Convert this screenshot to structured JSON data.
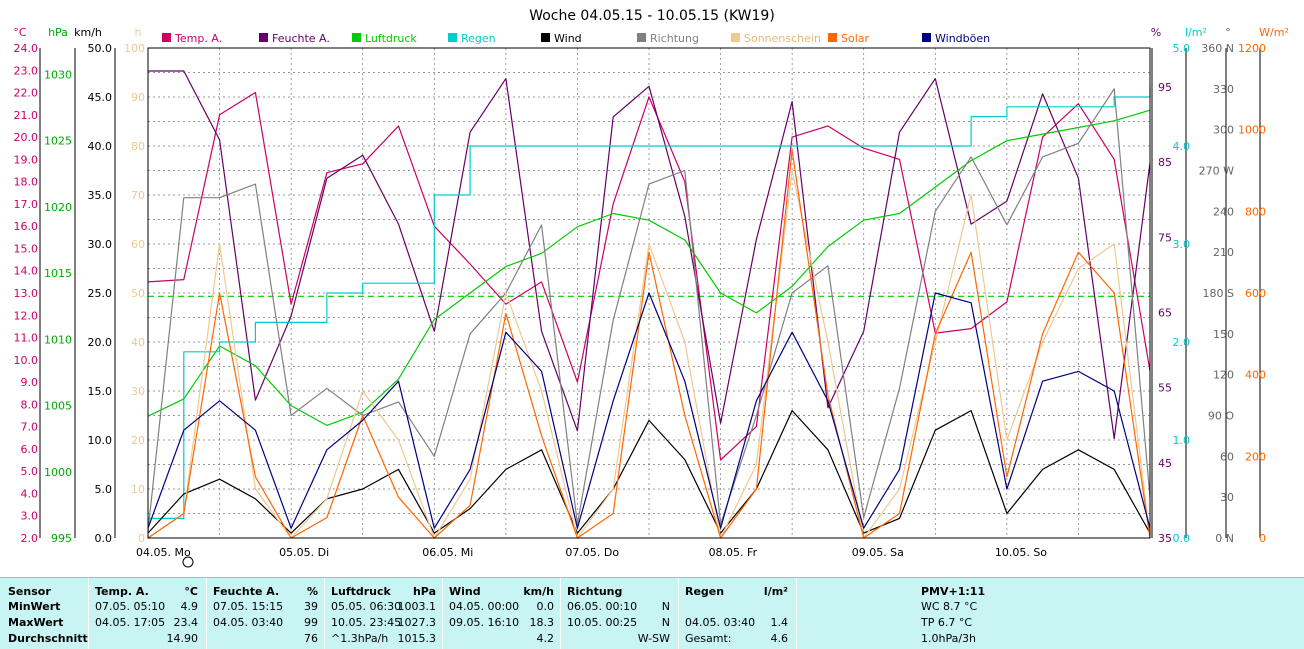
{
  "chart_data": {
    "type": "line",
    "title": "Woche 04.05.15 - 10.05.15 (KW19)",
    "x_day_labels": [
      "04.05.  Mo",
      "05.05.  Di",
      "06.05.  Mi",
      "07.05.  Do",
      "08.05.  Fr",
      "09.05.  Sa",
      "10.05.  So"
    ],
    "left_axes": [
      {
        "unit": "°C",
        "color": "#cc0066",
        "ticks": [
          "24.0",
          "23.0",
          "22.0",
          "21.0",
          "20.0",
          "19.0",
          "18.0",
          "17.0",
          "16.0",
          "15.0",
          "14.0",
          "13.0",
          "12.0",
          "11.0",
          "10.0",
          "9.0",
          "8.0",
          "7.0",
          "6.0",
          "5.0",
          "4.0",
          "3.0",
          "2.0"
        ],
        "ylim": [
          2,
          24
        ]
      },
      {
        "unit": "hPa",
        "color": "#00aa00",
        "ticks": [
          "1030",
          "1025",
          "1020",
          "1015",
          "1010",
          "1005",
          "1000",
          "995"
        ],
        "ylim": [
          995,
          1032
        ]
      },
      {
        "unit": "km/h",
        "color": "#000000",
        "ticks": [
          "50.0",
          "45.0",
          "40.0",
          "35.0",
          "30.0",
          "25.0",
          "20.0",
          "15.0",
          "10.0",
          "5.0",
          "0.0"
        ],
        "ylim": [
          0,
          50
        ]
      },
      {
        "unit": "h",
        "color": "#f0c890",
        "ticks": [
          "100",
          "90",
          "80",
          "70",
          "60",
          "50",
          "40",
          "30",
          "20",
          "10",
          "0"
        ],
        "ylim": [
          0,
          100
        ]
      }
    ],
    "right_axes": [
      {
        "unit": "%",
        "color": "#660066",
        "ticks": [
          "95",
          "85",
          "75",
          "65",
          "55",
          "45",
          "35"
        ]
      },
      {
        "unit": "l/m²",
        "color": "#00cccc",
        "ticks": [
          "5.0",
          "4.0",
          "3.0",
          "2.0",
          "1.0",
          "0.0"
        ],
        "ylim": [
          0,
          5
        ]
      },
      {
        "unit": "°",
        "color": "#666666",
        "ticks": [
          "360 N",
          "330",
          "300",
          "270 W",
          "240",
          "210",
          "180 S",
          "150",
          "120",
          "90  O",
          "60",
          "30",
          "0  N"
        ],
        "ylim": [
          0,
          360
        ]
      },
      {
        "unit": "W/m²",
        "color": "#ff6600",
        "ticks": [
          "1200",
          "1000",
          "800",
          "600",
          "400",
          "200",
          "0"
        ],
        "ylim": [
          0,
          1200
        ]
      }
    ],
    "legend": [
      {
        "label": "Temp. A.",
        "color": "#cc0066"
      },
      {
        "label": "Feuchte A.",
        "color": "#660066"
      },
      {
        "label": "Luftdruck",
        "color": "#00cc00"
      },
      {
        "label": "Regen",
        "color": "#00cccc"
      },
      {
        "label": "Wind",
        "color": "#000000"
      },
      {
        "label": "Richtung",
        "color": "#808080"
      },
      {
        "label": "Sonnenschein",
        "color": "#f0c890"
      },
      {
        "label": "Solar",
        "color": "#ff6600"
      },
      {
        "label": "Windböen",
        "color": "#000080"
      }
    ],
    "x_hours": [
      0,
      6,
      12,
      18,
      24,
      30,
      36,
      42,
      48,
      54,
      60,
      66,
      72,
      78,
      84,
      90,
      96,
      102,
      108,
      114,
      120,
      126,
      132,
      138,
      144,
      150,
      156,
      162,
      168
    ],
    "series": [
      {
        "name": "Temp. A.",
        "color": "#cc0066",
        "axis": 0,
        "values": [
          13.5,
          13.6,
          21.0,
          22.0,
          12.5,
          18.4,
          18.8,
          20.5,
          16.0,
          14.3,
          12.5,
          13.5,
          9.0,
          17.0,
          21.8,
          18.0,
          5.5,
          7.0,
          20.0,
          20.5,
          19.5,
          19.0,
          11.2,
          11.4,
          12.6,
          20.0,
          21.5,
          19.0,
          9.5
        ]
      },
      {
        "name": "Feuchte A.",
        "color": "#660066",
        "axis": 4,
        "values": [
          96,
          96,
          87,
          53,
          64,
          82,
          85,
          76,
          62,
          88,
          95,
          62,
          49,
          90,
          94,
          77,
          50,
          74,
          92,
          52,
          62,
          88,
          95,
          76,
          79,
          93,
          82,
          48,
          84
        ]
      },
      {
        "name": "Luftdruck",
        "color": "#00cc00",
        "axis": 1,
        "values": [
          1004.2,
          1005.5,
          1009.5,
          1008.0,
          1005.0,
          1003.5,
          1004.5,
          1007.0,
          1011.5,
          1013.5,
          1015.5,
          1016.5,
          1018.5,
          1019.5,
          1019.0,
          1017.5,
          1013.5,
          1012.0,
          1014.0,
          1017.0,
          1019.0,
          1019.5,
          1021.5,
          1023.5,
          1025.0,
          1025.5,
          1026.0,
          1026.5,
          1027.3
        ]
      },
      {
        "name": "Regen",
        "color": "#00cccc",
        "axis": 5,
        "values": [
          0.2,
          1.9,
          2.0,
          2.2,
          2.2,
          2.5,
          2.6,
          2.6,
          3.5,
          4.0,
          4.0,
          4.0,
          4.0,
          4.0,
          4.0,
          4.0,
          4.0,
          4.0,
          4.0,
          4.0,
          4.0,
          4.0,
          4.0,
          4.3,
          4.4,
          4.4,
          4.4,
          4.5,
          4.6
        ]
      },
      {
        "name": "Wind",
        "color": "#000000",
        "axis": 2,
        "values": [
          0.5,
          4.5,
          6.0,
          4.0,
          0.5,
          4.0,
          5.0,
          7.0,
          0.5,
          3.0,
          7.0,
          9.0,
          0.5,
          5.0,
          12.0,
          8.0,
          0.5,
          5.0,
          13.0,
          9.0,
          0.5,
          2.0,
          11.0,
          13.0,
          2.5,
          7.0,
          9.0,
          7.0,
          0.5
        ]
      },
      {
        "name": "Richtung",
        "color": "#808080",
        "axis": 6,
        "values": [
          5,
          250,
          250,
          260,
          90,
          110,
          90,
          100,
          60,
          150,
          180,
          230,
          10,
          160,
          260,
          270,
          10,
          90,
          180,
          200,
          15,
          110,
          240,
          280,
          230,
          280,
          290,
          330,
          30
        ]
      },
      {
        "name": "Sonnenschein",
        "color": "#f0c890",
        "axis": 3,
        "values": [
          0,
          5,
          60,
          10,
          0,
          8,
          30,
          20,
          0,
          12,
          50,
          30,
          0,
          10,
          60,
          40,
          0,
          15,
          75,
          40,
          0,
          10,
          40,
          70,
          20,
          40,
          55,
          60,
          0
        ]
      },
      {
        "name": "Solar",
        "color": "#ff6600",
        "axis": 7,
        "values": [
          0,
          60,
          600,
          150,
          0,
          50,
          300,
          100,
          0,
          80,
          550,
          250,
          0,
          60,
          700,
          300,
          0,
          120,
          950,
          350,
          0,
          60,
          500,
          700,
          150,
          500,
          700,
          600,
          0
        ]
      },
      {
        "name": "Windböen",
        "color": "#000080",
        "axis": 2,
        "values": [
          1.0,
          11.0,
          14.0,
          11.0,
          1.0,
          9.0,
          12.0,
          16.0,
          1.0,
          7.0,
          21.0,
          17.0,
          1.0,
          14.0,
          25.0,
          16.0,
          1.0,
          14.0,
          21.0,
          14.0,
          1.0,
          7.0,
          25.0,
          24.0,
          5.0,
          16.0,
          17.0,
          15.0,
          1.0
        ]
      }
    ],
    "references": [
      {
        "axis": 1,
        "value": 1013.25,
        "color": "#00cc00",
        "style": "dashed"
      }
    ],
    "grid": true
  },
  "stats": {
    "sensor": {
      "label": "Sensor",
      "rows": [
        "MinWert",
        "MaxWert",
        "Durchschnitt"
      ]
    },
    "temp": {
      "title": "Temp. A.",
      "unit": "°C",
      "min_date": "07.05.  05:10",
      "min_val": "4.9",
      "max_date": "04.05.  17:05",
      "max_val": "23.4",
      "avg_val": "14.90"
    },
    "hum": {
      "title": "Feuchte A.",
      "unit": "%",
      "min_date": "07.05.  15:15",
      "min_val": "39",
      "max_date": "04.05.  03:40",
      "max_val": "99",
      "avg_val": "76"
    },
    "press": {
      "title": "Luftdruck",
      "unit": "hPa",
      "min_date": "05.05.  06:30",
      "min_val": "1003.1",
      "max_date": "10.05.  23:45",
      "max_val": "1027.3",
      "avg_label": "^1.3hPa/h",
      "avg_val": "1015.3"
    },
    "wind": {
      "title": "Wind",
      "unit": "km/h",
      "min_date": "04.05.  00:00",
      "min_val": "0.0",
      "max_date": "09.05.  16:10",
      "max_val": "18.3",
      "avg_val": "4.2"
    },
    "dir": {
      "title": "Richtung",
      "min_date": "06.05.  00:10",
      "min_val": "N",
      "max_date": "10.05.  00:25",
      "max_val": "N",
      "avg_val": "W-SW"
    },
    "rain": {
      "title": "Regen",
      "unit": "l/m²",
      "max_date": "04.05.  03:40",
      "max_val": "1.4",
      "total_label": "Gesamt:",
      "total_val": "4.6"
    },
    "pmv": {
      "title": "PMV+1:11",
      "line1": "WC 8.7 °C",
      "line2": "TP 6.7 °C",
      "line3": "1.0hPa/3h"
    }
  }
}
